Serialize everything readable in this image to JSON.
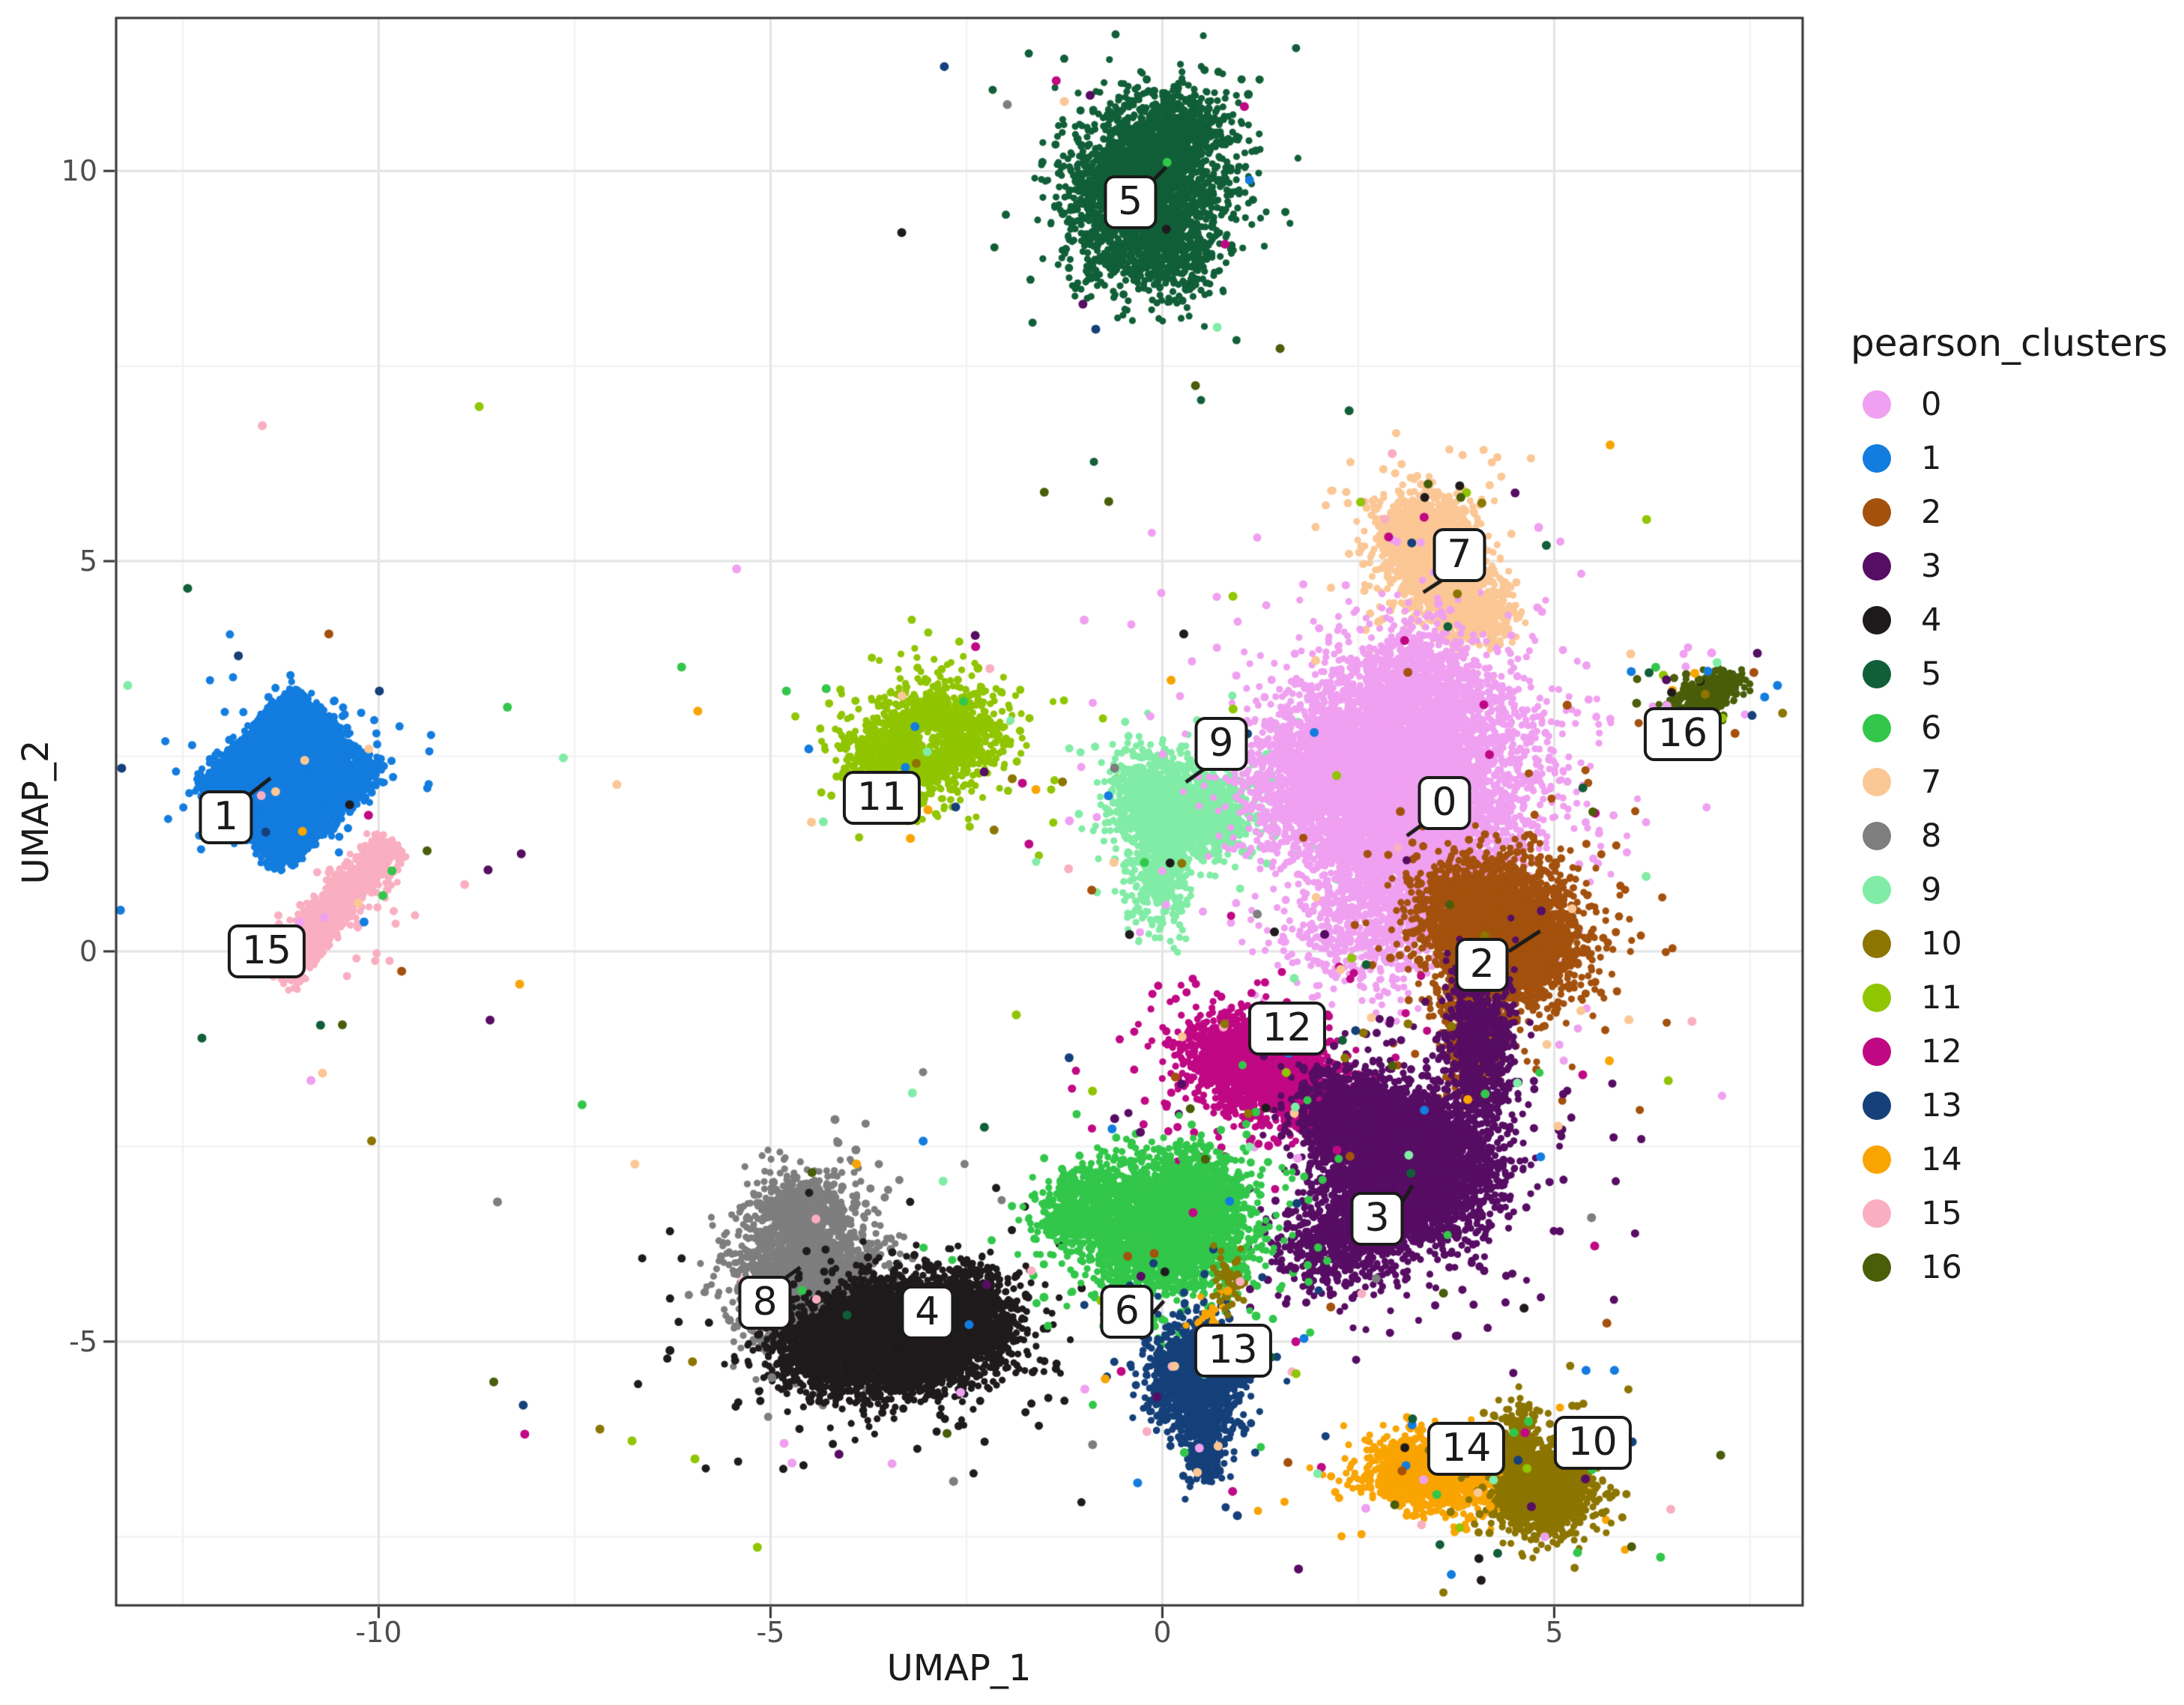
{
  "legend": {
    "title": "pearson_clusters"
  },
  "chart_data": {
    "type": "scatter",
    "title": "",
    "xlabel": "UMAP_1",
    "ylabel": "UMAP_2",
    "xlim": [
      -13.35,
      8.17
    ],
    "ylim": [
      -8.38,
      11.96
    ],
    "x_ticks": [
      {
        "v": -10,
        "t": "-10"
      },
      {
        "v": -5,
        "t": "-5"
      },
      {
        "v": 0,
        "t": "0"
      },
      {
        "v": 5,
        "t": "5"
      }
    ],
    "y_ticks": [
      {
        "v": -5,
        "t": "-5"
      },
      {
        "v": 0,
        "t": "0"
      },
      {
        "v": 5,
        "t": "5"
      },
      {
        "v": 10,
        "t": "10"
      }
    ],
    "x_minor": [
      -12.5,
      -7.5,
      -2.5,
      2.5,
      7.5
    ],
    "y_minor": [
      -7.5,
      -2.5,
      2.5,
      7.5
    ],
    "grid": true,
    "legend_position": "right",
    "panel_border_color": "#333333",
    "major_grid_color": "#e4e4e4",
    "minor_grid_color": "#f1f1f1",
    "draw_order": [
      "1",
      "15",
      "8",
      "4",
      "5",
      "11",
      "9",
      "7",
      "0",
      "2",
      "12",
      "3",
      "6",
      "13",
      "14",
      "10",
      "16"
    ],
    "sprinkle": {
      "n": 380,
      "mult": 3.2
    },
    "clusters": [
      {
        "id": "0",
        "color": "#F0A0F0",
        "label": {
          "x": 3.6,
          "y": 1.9
        },
        "callout": [
          [
            3.42,
            1.7
          ],
          [
            3.12,
            1.48
          ]
        ],
        "blobs": [
          {
            "cx": 3.15,
            "cy": 2.25,
            "sx": 0.8,
            "sy": 0.72,
            "n": 4000
          },
          {
            "cx": 2.15,
            "cy": 2.45,
            "sx": 0.5,
            "sy": 0.45,
            "n": 1100
          },
          {
            "cx": 3.25,
            "cy": 3.4,
            "sx": 0.42,
            "sy": 0.4,
            "n": 800
          },
          {
            "cx": 3.2,
            "cy": 1.0,
            "sx": 0.55,
            "sy": 0.5,
            "n": 1300
          },
          {
            "cx": 2.45,
            "cy": 0.3,
            "sx": 0.5,
            "sy": 0.5,
            "n": 420
          },
          {
            "cx": 1.75,
            "cy": 1.9,
            "sx": 0.4,
            "sy": 0.35,
            "n": 350
          }
        ],
        "noise": {
          "n": 130,
          "mult": 2.6
        }
      },
      {
        "id": "1",
        "color": "#137CDF",
        "label": {
          "x": -11.95,
          "y": 1.72
        },
        "callout": [
          [
            -11.72,
            1.95
          ],
          [
            -11.38,
            2.22
          ]
        ],
        "blobs": [
          {
            "shape": "diamond",
            "cx": -11.15,
            "cy": 2.2,
            "dx": 0.89,
            "dy": 0.78,
            "rot": 45,
            "jit": 0.06,
            "sx": 0.89,
            "sy": 0.78,
            "n": 4600
          }
        ],
        "noise": {
          "n": 150,
          "mult": 0.9
        }
      },
      {
        "id": "2",
        "color": "#A4510E",
        "label": {
          "x": 4.08,
          "y": -0.17
        },
        "callout": [
          [
            4.42,
            0.0
          ],
          [
            4.82,
            0.26
          ]
        ],
        "blobs": [
          {
            "cx": 4.4,
            "cy": 0.15,
            "sx": 0.45,
            "sy": 0.45,
            "n": 3000
          },
          {
            "cx": 3.8,
            "cy": 0.55,
            "sx": 0.3,
            "sy": 0.3,
            "n": 600
          },
          {
            "cx": 3.9,
            "cy": -1.05,
            "sx": 0.18,
            "sy": 0.38,
            "n": 380
          }
        ],
        "noise": {
          "n": 110,
          "mult": 2.4
        }
      },
      {
        "id": "3",
        "color": "#570D63",
        "label": {
          "x": 2.74,
          "y": -3.43
        },
        "callout": [
          [
            3.0,
            -3.31
          ],
          [
            3.19,
            -3.0
          ]
        ],
        "blobs": [
          {
            "cx": 3.2,
            "cy": -2.75,
            "sx": 0.5,
            "sy": 0.45,
            "n": 3800
          },
          {
            "cx": 2.4,
            "cy": -2.1,
            "sx": 0.35,
            "sy": 0.3,
            "n": 900
          },
          {
            "cx": 4.05,
            "cy": -1.15,
            "sx": 0.22,
            "sy": 0.45,
            "n": 700
          },
          {
            "cx": 2.3,
            "cy": -3.7,
            "sx": 0.4,
            "sy": 0.35,
            "n": 600
          }
        ],
        "noise": {
          "n": 170,
          "mult": 2.5
        }
      },
      {
        "id": "4",
        "color": "#1F1B1C",
        "label": {
          "x": -3.0,
          "y": -4.63
        },
        "callout": [
          [
            -3.19,
            -4.93
          ],
          [
            -3.44,
            -5.12
          ]
        ],
        "blobs": [
          {
            "cx": -3.4,
            "cy": -4.95,
            "sx": 0.6,
            "sy": 0.35,
            "rot": 5,
            "n": 3800
          },
          {
            "cx": -2.5,
            "cy": -4.7,
            "sx": 0.35,
            "sy": 0.3,
            "n": 800
          },
          {
            "cx": -4.35,
            "cy": -5.15,
            "sx": 0.3,
            "sy": 0.25,
            "n": 500
          }
        ],
        "noise": {
          "n": 140,
          "mult": 2.4
        }
      },
      {
        "id": "5",
        "color": "#115F38",
        "label": {
          "x": -0.41,
          "y": 9.6
        },
        "callout": [
          [
            -0.2,
            9.8
          ],
          [
            0.05,
            10.05
          ]
        ],
        "blobs": [
          {
            "cx": -0.1,
            "cy": 9.85,
            "sx": 0.5,
            "sy": 0.55,
            "n": 1500
          },
          {
            "cx": -0.55,
            "cy": 9.5,
            "sx": 0.35,
            "sy": 0.5,
            "n": 700
          },
          {
            "cx": 0.15,
            "cy": 10.5,
            "sx": 0.3,
            "sy": 0.25,
            "n": 450
          },
          {
            "cx": 0.1,
            "cy": 8.95,
            "sx": 0.25,
            "sy": 0.3,
            "n": 350
          }
        ],
        "noise": {
          "n": 60,
          "mult": 2.2
        }
      },
      {
        "id": "6",
        "color": "#32C74A",
        "label": {
          "x": -0.45,
          "y": -4.62
        },
        "callout": [
          [
            -0.19,
            -4.71
          ],
          [
            0.02,
            -4.48
          ]
        ],
        "blobs": [
          {
            "cx": 0.05,
            "cy": -3.55,
            "sx": 0.5,
            "sy": 0.38,
            "n": 2800
          },
          {
            "cx": -1.0,
            "cy": -3.25,
            "sx": 0.3,
            "sy": 0.22,
            "rot": 20,
            "n": 500
          },
          {
            "cx": 0.45,
            "cy": -2.95,
            "sx": 0.3,
            "sy": 0.25,
            "n": 400
          }
        ],
        "noise": {
          "n": 130,
          "mult": 2.4
        }
      },
      {
        "id": "7",
        "color": "#FBC795",
        "label": {
          "x": 3.79,
          "y": 5.08
        },
        "callout": [
          [
            3.56,
            4.75
          ],
          [
            3.33,
            4.6
          ]
        ],
        "blobs": [
          {
            "cx": 3.35,
            "cy": 5.35,
            "sx": 0.28,
            "sy": 0.25,
            "n": 1000
          },
          {
            "cx": 3.5,
            "cy": 4.85,
            "sx": 0.3,
            "sy": 0.28,
            "n": 800
          },
          {
            "cx": 3.95,
            "cy": 4.35,
            "sx": 0.25,
            "sy": 0.22,
            "n": 600
          }
        ],
        "noise": {
          "n": 80,
          "mult": 2.4
        }
      },
      {
        "id": "8",
        "color": "#7E7E7E",
        "label": {
          "x": -5.07,
          "y": -4.5
        },
        "callout": [
          [
            -4.83,
            -4.2
          ],
          [
            -4.62,
            -4.05
          ]
        ],
        "blobs": [
          {
            "cx": -4.55,
            "cy": -4.1,
            "sx": 0.42,
            "sy": 0.5,
            "n": 2000
          },
          {
            "cx": -4.6,
            "cy": -3.3,
            "sx": 0.22,
            "sy": 0.22,
            "n": 300
          }
        ],
        "noise": {
          "n": 70,
          "mult": 2.0
        }
      },
      {
        "id": "9",
        "color": "#81ECA6",
        "label": {
          "x": 0.75,
          "y": 2.66
        },
        "callout": [
          [
            0.55,
            2.35
          ],
          [
            0.3,
            2.17
          ]
        ],
        "blobs": [
          {
            "cx": 0.3,
            "cy": 1.8,
            "sx": 0.4,
            "sy": 0.3,
            "n": 1300
          },
          {
            "cx": -0.15,
            "cy": 1.95,
            "sx": 0.25,
            "sy": 0.3,
            "n": 450
          },
          {
            "cx": -0.05,
            "cy": 0.95,
            "sx": 0.2,
            "sy": 0.35,
            "n": 350
          }
        ],
        "noise": {
          "n": 70,
          "mult": 2.5
        }
      },
      {
        "id": "10",
        "color": "#8C7501",
        "label": {
          "x": 5.49,
          "y": -6.3
        },
        "callout": null,
        "blobs": [
          {
            "cx": 4.85,
            "cy": -6.9,
            "sx": 0.3,
            "sy": 0.27,
            "n": 1600
          },
          {
            "cx": 4.55,
            "cy": -6.15,
            "sx": 0.12,
            "sy": 0.18,
            "n": 160
          },
          {
            "cx": 0.85,
            "cy": -4.25,
            "sx": 0.12,
            "sy": 0.18,
            "n": 55
          }
        ],
        "noise": {
          "n": 60,
          "mult": 2.3
        }
      },
      {
        "id": "11",
        "color": "#90C501",
        "label": {
          "x": -3.58,
          "y": 1.97
        },
        "callout": null,
        "blobs": [
          {
            "cx": -2.95,
            "cy": 2.72,
            "sx": 0.42,
            "sy": 0.33,
            "rot": 25,
            "hole": 0.18,
            "n": 1500
          },
          {
            "cx": -3.6,
            "cy": 2.5,
            "sx": 0.25,
            "sy": 0.2,
            "n": 250
          }
        ],
        "noise": {
          "n": 60,
          "mult": 2.3
        }
      },
      {
        "id": "12",
        "color": "#C00884",
        "label": {
          "x": 1.59,
          "y": -0.99
        },
        "callout": null,
        "blobs": [
          {
            "cx": 1.15,
            "cy": -1.45,
            "sx": 0.42,
            "sy": 0.3,
            "rot": -15,
            "n": 1900
          },
          {
            "cx": 2.0,
            "cy": -1.9,
            "sx": 0.3,
            "sy": 0.25,
            "n": 350
          }
        ],
        "noise": {
          "n": 90,
          "mult": 2.4
        }
      },
      {
        "id": "13",
        "color": "#15407A",
        "label": {
          "x": 0.9,
          "y": -5.12
        },
        "callout": null,
        "blobs": [
          {
            "cx": 0.45,
            "cy": -5.45,
            "sx": 0.28,
            "sy": 0.35,
            "n": 1300
          },
          {
            "cx": 0.55,
            "cy": -6.4,
            "sx": 0.12,
            "sy": 0.25,
            "n": 220
          }
        ],
        "noise": {
          "n": 55,
          "mult": 2.2
        }
      },
      {
        "id": "14",
        "color": "#F9A401",
        "label": {
          "x": 3.88,
          "y": -6.37
        },
        "callout": null,
        "blobs": [
          {
            "cx": 3.5,
            "cy": -6.68,
            "sx": 0.42,
            "sy": 0.22,
            "rot": -5,
            "n": 1400
          },
          {
            "cx": 0.58,
            "cy": -4.7,
            "sx": 0.12,
            "sy": 0.18,
            "n": 28
          }
        ],
        "noise": {
          "n": 55,
          "mult": 2.2
        }
      },
      {
        "id": "15",
        "color": "#F9AFC1",
        "label": {
          "x": -11.43,
          "y": 0.0
        },
        "callout": null,
        "blobs": [
          {
            "shape": "stripe",
            "x1": -11.3,
            "y1": -0.3,
            "x2": -9.82,
            "y2": 1.38,
            "sw": 0.13,
            "sx": 0.45,
            "sy": 0.45,
            "n": 1150
          }
        ],
        "noise": {
          "n": 45,
          "mult": 1.0
        }
      },
      {
        "id": "16",
        "color": "#4A5D09",
        "label": {
          "x": 6.64,
          "y": 2.78
        },
        "callout": null,
        "blobs": [
          {
            "cx": 6.95,
            "cy": 3.32,
            "sx": 0.22,
            "sy": 0.1,
            "rot": 25,
            "n": 330
          }
        ],
        "noise": {
          "n": 14,
          "mult": 2.0
        }
      }
    ]
  }
}
